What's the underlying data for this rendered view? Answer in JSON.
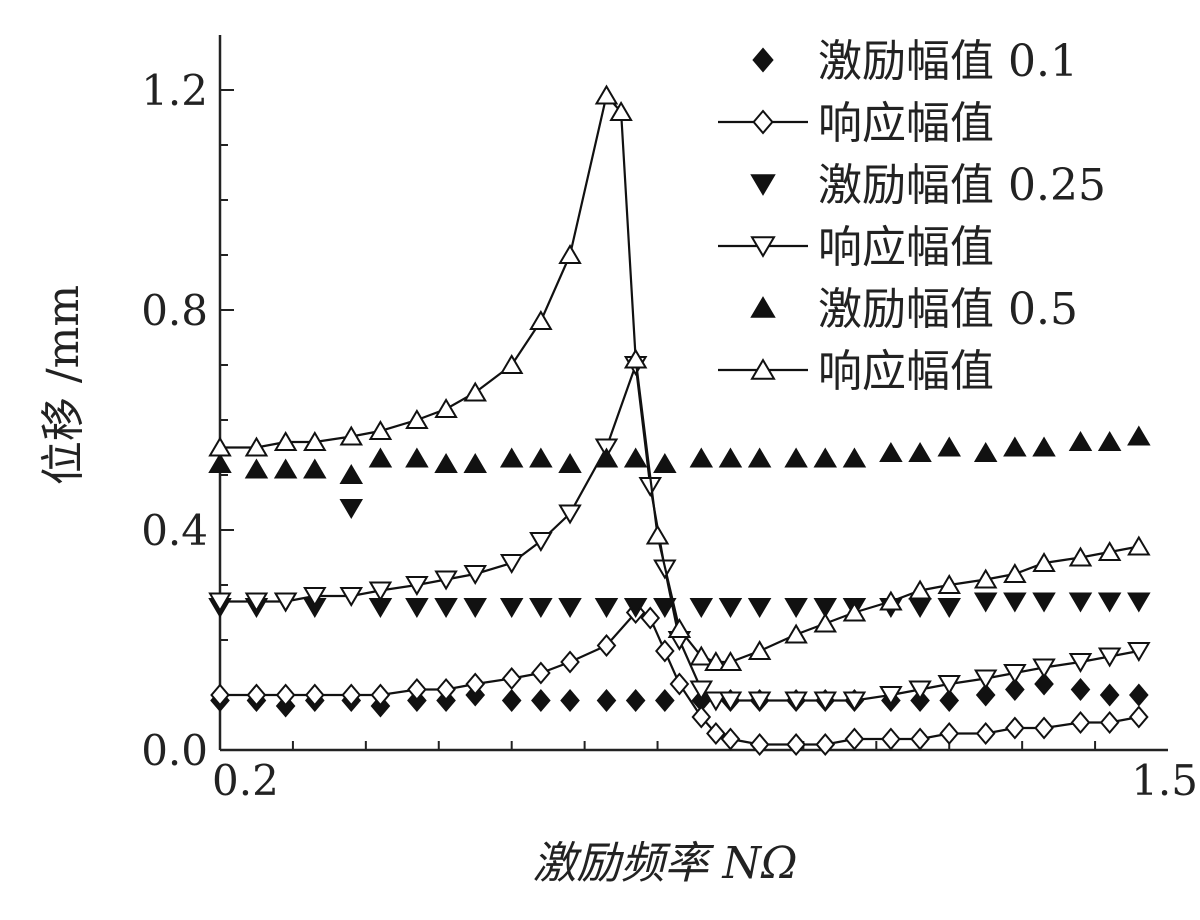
{
  "chart_data": {
    "type": "line",
    "title": "",
    "xlabel": "激励频率 NΩ",
    "ylabel": "位移 /mm",
    "xlim": [
      0.2,
      1.5
    ],
    "ylim": [
      0.0,
      1.3
    ],
    "x_ticks": [
      {
        "value": 0.2,
        "label": "0.2"
      },
      {
        "value": 1.5,
        "label": "1.5"
      }
    ],
    "y_ticks": [
      {
        "value": 0.0,
        "label": "0.0"
      },
      {
        "value": 0.4,
        "label": "0.4"
      },
      {
        "value": 0.8,
        "label": "0.8"
      },
      {
        "value": 1.2,
        "label": "1.2"
      }
    ],
    "grid": false,
    "legend_position": "top-right",
    "series": [
      {
        "name": "激励幅值 0.1",
        "marker": "diamond-filled",
        "line": false,
        "x": [
          0.2,
          0.25,
          0.29,
          0.33,
          0.38,
          0.42,
          0.47,
          0.51,
          0.55,
          0.6,
          0.64,
          0.68,
          0.73,
          0.77,
          0.81,
          0.86,
          0.9,
          0.94,
          0.99,
          1.03,
          1.07,
          1.12,
          1.16,
          1.2,
          1.25,
          1.29,
          1.33,
          1.38,
          1.42,
          1.46
        ],
        "y": [
          0.09,
          0.09,
          0.08,
          0.09,
          0.09,
          0.08,
          0.09,
          0.09,
          0.1,
          0.09,
          0.09,
          0.09,
          0.09,
          0.09,
          0.09,
          0.09,
          0.09,
          0.09,
          0.09,
          0.09,
          0.09,
          0.09,
          0.09,
          0.09,
          0.1,
          0.11,
          0.12,
          0.11,
          0.1,
          0.1
        ]
      },
      {
        "name": "响应幅值",
        "marker": "diamond-open",
        "line": true,
        "x": [
          0.2,
          0.25,
          0.29,
          0.33,
          0.38,
          0.42,
          0.47,
          0.51,
          0.55,
          0.6,
          0.64,
          0.68,
          0.73,
          0.77,
          0.79,
          0.81,
          0.83,
          0.86,
          0.88,
          0.9,
          0.94,
          0.99,
          1.03,
          1.07,
          1.12,
          1.16,
          1.2,
          1.25,
          1.29,
          1.33,
          1.38,
          1.42,
          1.46
        ],
        "y": [
          0.1,
          0.1,
          0.1,
          0.1,
          0.1,
          0.1,
          0.11,
          0.11,
          0.12,
          0.13,
          0.14,
          0.16,
          0.19,
          0.25,
          0.24,
          0.18,
          0.12,
          0.06,
          0.03,
          0.02,
          0.01,
          0.01,
          0.01,
          0.02,
          0.02,
          0.02,
          0.03,
          0.03,
          0.04,
          0.04,
          0.05,
          0.05,
          0.06
        ]
      },
      {
        "name": "激励幅值 0.25",
        "marker": "triangle-down-filled",
        "line": false,
        "x": [
          0.2,
          0.25,
          0.29,
          0.33,
          0.38,
          0.42,
          0.47,
          0.51,
          0.55,
          0.6,
          0.64,
          0.68,
          0.73,
          0.77,
          0.81,
          0.86,
          0.9,
          0.94,
          0.99,
          1.03,
          1.07,
          1.12,
          1.16,
          1.2,
          1.25,
          1.29,
          1.33,
          1.38,
          1.42,
          1.46
        ],
        "y": [
          0.26,
          0.26,
          0.27,
          0.26,
          0.44,
          0.26,
          0.26,
          0.26,
          0.26,
          0.26,
          0.26,
          0.26,
          0.26,
          0.26,
          0.26,
          0.26,
          0.26,
          0.26,
          0.26,
          0.26,
          0.26,
          0.26,
          0.26,
          0.26,
          0.27,
          0.27,
          0.27,
          0.27,
          0.27,
          0.27
        ]
      },
      {
        "name": "响应幅值",
        "marker": "triangle-down-open",
        "line": true,
        "x": [
          0.2,
          0.25,
          0.29,
          0.33,
          0.38,
          0.42,
          0.47,
          0.51,
          0.55,
          0.6,
          0.64,
          0.68,
          0.73,
          0.77,
          0.79,
          0.81,
          0.83,
          0.86,
          0.88,
          0.9,
          0.94,
          0.99,
          1.03,
          1.07,
          1.12,
          1.16,
          1.2,
          1.25,
          1.29,
          1.33,
          1.38,
          1.42,
          1.46
        ],
        "y": [
          0.27,
          0.27,
          0.27,
          0.28,
          0.28,
          0.29,
          0.3,
          0.31,
          0.32,
          0.34,
          0.38,
          0.43,
          0.55,
          0.7,
          0.48,
          0.33,
          0.2,
          0.11,
          0.09,
          0.09,
          0.09,
          0.09,
          0.09,
          0.09,
          0.1,
          0.11,
          0.12,
          0.13,
          0.14,
          0.15,
          0.16,
          0.17,
          0.18
        ]
      },
      {
        "name": "激励幅值 0.5",
        "marker": "triangle-up-filled",
        "line": false,
        "x": [
          0.2,
          0.25,
          0.29,
          0.33,
          0.38,
          0.42,
          0.47,
          0.51,
          0.55,
          0.6,
          0.64,
          0.68,
          0.73,
          0.77,
          0.81,
          0.86,
          0.9,
          0.94,
          0.99,
          1.03,
          1.07,
          1.12,
          1.16,
          1.2,
          1.25,
          1.29,
          1.33,
          1.38,
          1.42,
          1.46
        ],
        "y": [
          0.52,
          0.51,
          0.51,
          0.51,
          0.5,
          0.53,
          0.53,
          0.52,
          0.52,
          0.53,
          0.53,
          0.52,
          0.53,
          0.53,
          0.52,
          0.53,
          0.53,
          0.53,
          0.53,
          0.53,
          0.53,
          0.54,
          0.54,
          0.55,
          0.54,
          0.55,
          0.55,
          0.56,
          0.56,
          0.57
        ]
      },
      {
        "name": "响应幅值",
        "marker": "triangle-up-open",
        "line": true,
        "x": [
          0.2,
          0.25,
          0.29,
          0.33,
          0.38,
          0.42,
          0.47,
          0.51,
          0.55,
          0.6,
          0.64,
          0.68,
          0.73,
          0.75,
          0.77,
          0.8,
          0.83,
          0.86,
          0.88,
          0.9,
          0.94,
          0.99,
          1.03,
          1.07,
          1.12,
          1.16,
          1.2,
          1.25,
          1.29,
          1.33,
          1.38,
          1.42,
          1.46
        ],
        "y": [
          0.55,
          0.55,
          0.56,
          0.56,
          0.57,
          0.58,
          0.6,
          0.62,
          0.65,
          0.7,
          0.78,
          0.9,
          1.19,
          1.16,
          0.71,
          0.39,
          0.22,
          0.17,
          0.16,
          0.16,
          0.18,
          0.21,
          0.23,
          0.25,
          0.27,
          0.29,
          0.3,
          0.31,
          0.32,
          0.34,
          0.35,
          0.36,
          0.37
        ]
      }
    ]
  }
}
